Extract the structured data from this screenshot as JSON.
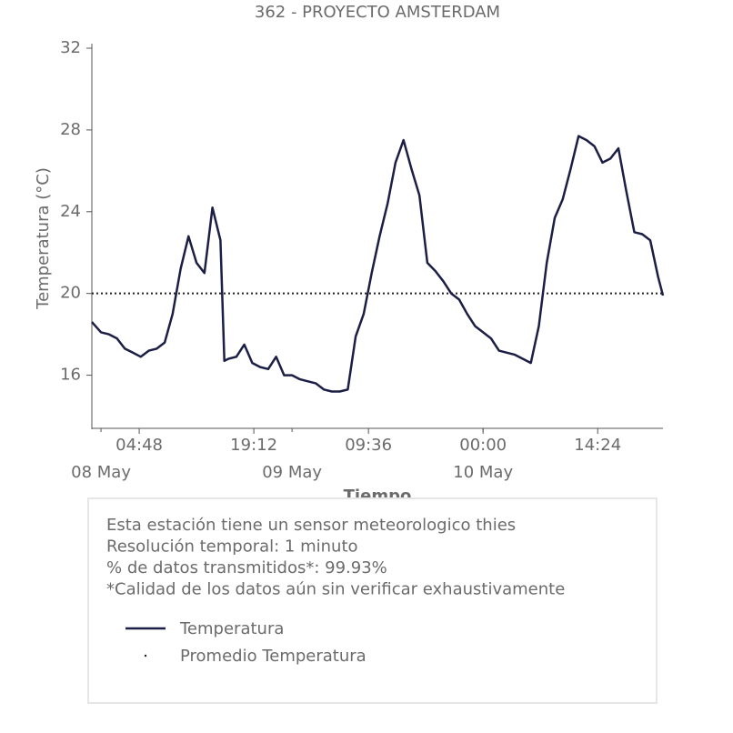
{
  "chart_data": {
    "type": "line",
    "title": "362 - PROYECTO AMSTERDAM",
    "xlabel": "Tiempo",
    "ylabel": "Temperatura (°C)",
    "x": [
      "07 May 22:51",
      "08 May 00:00",
      "08 May 01:00",
      "08 May 02:00",
      "08 May 03:00",
      "08 May 04:00",
      "08 May 05:00",
      "08 May 06:00",
      "08 May 07:00",
      "08 May 08:00",
      "08 May 09:00",
      "08 May 10:00",
      "08 May 11:00",
      "08 May 12:00",
      "08 May 13:00",
      "08 May 14:00",
      "08 May 15:00",
      "08 May 15:30",
      "08 May 16:00",
      "08 May 17:00",
      "08 May 18:00",
      "08 May 19:00",
      "08 May 20:00",
      "08 May 21:00",
      "08 May 22:00",
      "08 May 23:00",
      "09 May 00:00",
      "09 May 01:00",
      "09 May 02:00",
      "09 May 03:00",
      "09 May 04:00",
      "09 May 05:00",
      "09 May 06:00",
      "09 May 07:00",
      "09 May 08:00",
      "09 May 09:00",
      "09 May 10:00",
      "09 May 11:00",
      "09 May 12:00",
      "09 May 13:00",
      "09 May 14:00",
      "09 May 15:00",
      "09 May 16:00",
      "09 May 17:00",
      "09 May 18:00",
      "09 May 19:00",
      "09 May 20:00",
      "09 May 21:00",
      "09 May 22:00",
      "09 May 23:00",
      "10 May 00:00",
      "10 May 01:00",
      "10 May 02:00",
      "10 May 03:00",
      "10 May 04:00",
      "10 May 05:00",
      "10 May 06:00",
      "10 May 07:00",
      "10 May 08:00",
      "10 May 09:00",
      "10 May 10:00",
      "10 May 11:00",
      "10 May 12:00",
      "10 May 13:00",
      "10 May 14:00",
      "10 May 15:00",
      "10 May 16:00",
      "10 May 17:00",
      "10 May 18:00",
      "10 May 19:00",
      "10 May 20:00",
      "10 May 21:00",
      "10 May 22:00",
      "10 May 22:36"
    ],
    "series": [
      {
        "name": "Temperatura",
        "color": "#1c1f45",
        "values": [
          18.6,
          18.1,
          18.0,
          17.8,
          17.3,
          17.1,
          16.9,
          17.2,
          17.3,
          17.6,
          19.0,
          21.2,
          22.8,
          21.5,
          21.0,
          24.2,
          22.6,
          16.7,
          16.8,
          16.9,
          17.5,
          16.6,
          16.4,
          16.3,
          16.9,
          16.0,
          16.0,
          15.8,
          15.7,
          15.6,
          15.3,
          15.2,
          15.2,
          15.3,
          17.9,
          19.0,
          21.0,
          22.8,
          24.4,
          26.4,
          27.5,
          26.1,
          24.8,
          21.5,
          21.1,
          20.6,
          20.0,
          19.7,
          19.0,
          18.4,
          18.1,
          17.8,
          17.2,
          17.1,
          17.0,
          16.8,
          16.6,
          18.4,
          21.5,
          23.7,
          24.6,
          26.1,
          27.7,
          27.5,
          27.2,
          26.4,
          26.6,
          27.1,
          25.0,
          23.0,
          22.9,
          22.6,
          20.8,
          19.9
        ]
      }
    ],
    "average": {
      "name": "Promedio Temperatura",
      "color": "#222222",
      "value": 20
    },
    "xlim": [
      "07 May 22:51",
      "10 May 22:36"
    ],
    "xticks": [
      {
        "value": "08 May 04:48",
        "label": "04:48"
      },
      {
        "value": "08 May 19:12",
        "label": "19:12"
      },
      {
        "value": "09 May 09:36",
        "label": "09:36"
      },
      {
        "value": "10 May 00:00",
        "label": "00:00"
      },
      {
        "value": "10 May 14:24",
        "label": "14:24"
      }
    ],
    "xticks_minor": [
      {
        "value": "08 May 00:00",
        "label": "08 May"
      },
      {
        "value": "09 May 00:00",
        "label": "09 May"
      },
      {
        "value": "10 May 00:00",
        "label": "10 May"
      }
    ],
    "ylim": [
      13.4,
      32
    ],
    "yticks": [
      16,
      20,
      24,
      28,
      32
    ],
    "info": [
      "Esta estación tiene un sensor meteorologico thies",
      "Resolución temporal: 1 minuto",
      "% de datos transmitidos*: 99.93%",
      "*Calidad de los datos aún sin verificar exhaustivamente"
    ]
  }
}
